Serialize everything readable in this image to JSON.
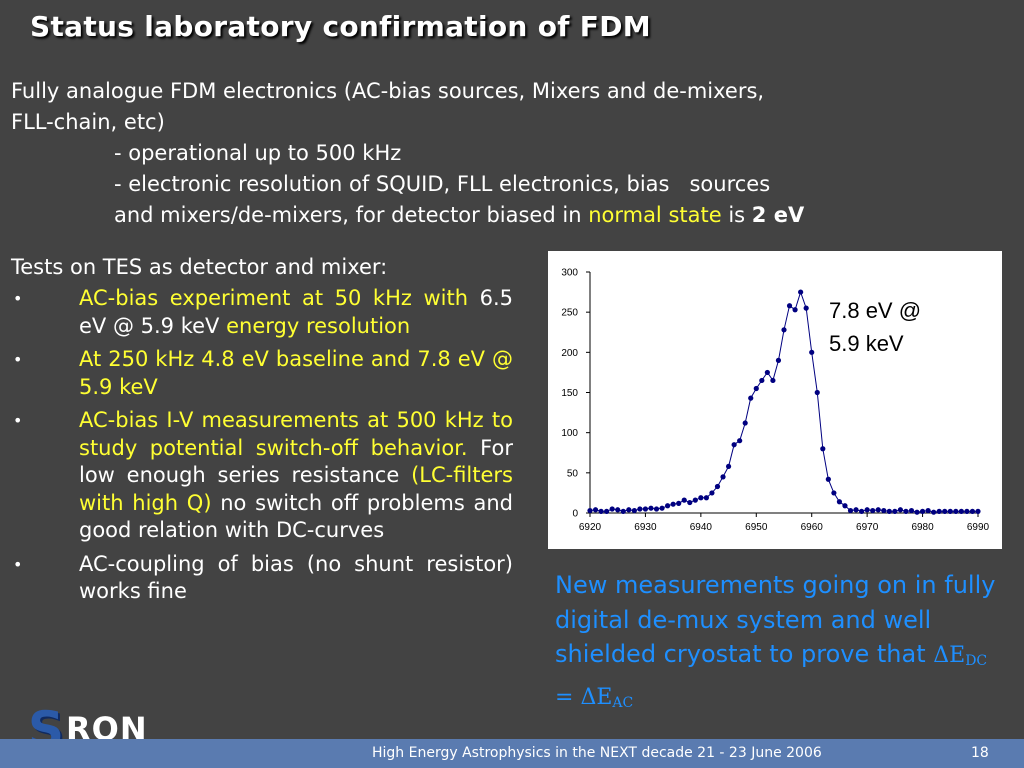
{
  "slide": {
    "title": "Status laboratory confirmation of FDM",
    "intro": {
      "line1": "Fully analogue FDM electronics (AC-bias sources, Mixers and de-mixers,",
      "line2": "FLL-chain, etc)",
      "item1": "- operational up to 500 kHz",
      "item2": "- electronic resolution of SQUID, FLL electronics, bias   sources",
      "item3_pre": "and mixers/de-mixers, for detector biased in ",
      "item3_hl": "normal state",
      "item3_mid": " is ",
      "item3_bold": "2 eV"
    },
    "tests_heading": "Tests on TES as detector and mixer:",
    "bullets": [
      {
        "a": "AC-bias experiment at 50 kHz with",
        "b": " 6.5 eV @ 5.9 keV ",
        "c": "energy resolution"
      },
      {
        "a": "At 250 kHz 4.8 eV baseline and 7.8 eV @ 5.9 keV"
      },
      {
        "a": "AC-bias I-V measurements at 500 kHz to study potential switch-off behavior.",
        "b": " For low enough series resistance ",
        "c": "(LC-filters with high Q)",
        "d": " no switch off problems and good relation with DC-curves"
      },
      {
        "a": "AC-coupling of bias (no shunt resistor) works fine"
      }
    ],
    "bullet_marker": "•",
    "blue_note": {
      "text": "New measurements going on in fully digital de-mux system and well shielded cryostat to prove that ",
      "delta": "ΔE",
      "sub_dc": "DC",
      "eq": " = ",
      "sub_ac": "AC"
    },
    "footer": {
      "text": "High Energy Astrophysics in the NEXT decade 21 - 23 June 2006",
      "page": "18"
    },
    "logo": {
      "s": "S",
      "ron": "RON"
    }
  },
  "colors": {
    "background": "#434343",
    "highlight": "#ffff33",
    "note_blue": "#1e8fff",
    "footer_bar": "#5a7bb0",
    "series": "#000080"
  },
  "chart_data": {
    "type": "line",
    "annotation": [
      "7.8 eV @",
      "5.9 keV"
    ],
    "xlim": [
      6920,
      6990
    ],
    "ylim": [
      0,
      300
    ],
    "xticks": [
      6920,
      6930,
      6940,
      6950,
      6960,
      6970,
      6980,
      6990
    ],
    "yticks": [
      0,
      50,
      100,
      150,
      200,
      250,
      300
    ],
    "grid": false,
    "x": [
      6920,
      6921,
      6922,
      6923,
      6924,
      6925,
      6926,
      6927,
      6928,
      6929,
      6930,
      6931,
      6932,
      6933,
      6934,
      6935,
      6936,
      6937,
      6938,
      6939,
      6940,
      6941,
      6942,
      6943,
      6944,
      6945,
      6946,
      6947,
      6948,
      6949,
      6950,
      6951,
      6952,
      6953,
      6954,
      6955,
      6956,
      6957,
      6958,
      6959,
      6960,
      6961,
      6962,
      6963,
      6964,
      6965,
      6966,
      6967,
      6968,
      6969,
      6970,
      6971,
      6972,
      6973,
      6974,
      6975,
      6976,
      6977,
      6978,
      6979,
      6980,
      6981,
      6982,
      6983,
      6984,
      6985,
      6986,
      6987,
      6988,
      6989,
      6990
    ],
    "y": [
      3,
      4,
      2,
      2,
      5,
      4,
      2,
      4,
      3,
      5,
      5,
      6,
      5,
      6,
      9,
      11,
      12,
      16,
      13,
      16,
      19,
      19,
      25,
      33,
      45,
      58,
      85,
      90,
      112,
      143,
      155,
      165,
      175,
      165,
      190,
      228,
      258,
      253,
      275,
      255,
      200,
      150,
      80,
      42,
      25,
      14,
      9,
      3,
      4,
      2,
      4,
      3,
      4,
      3,
      2,
      2,
      4,
      2,
      3,
      1,
      2,
      3,
      1,
      2,
      2,
      2,
      2,
      2,
      2,
      2,
      2
    ]
  }
}
